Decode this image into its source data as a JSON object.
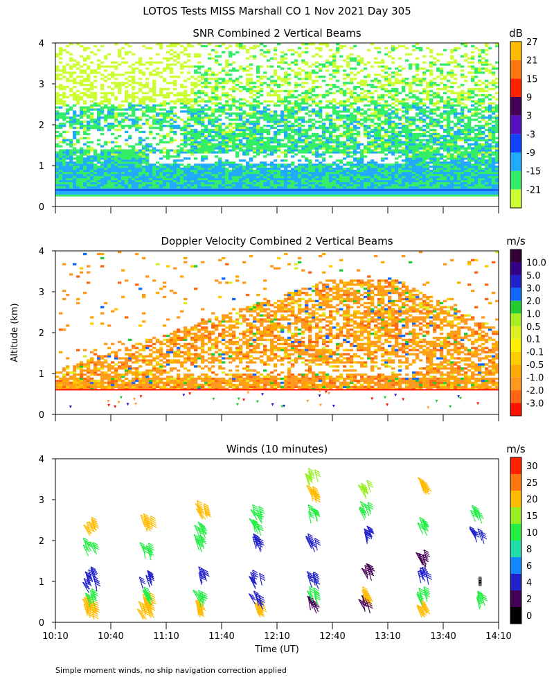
{
  "figure": {
    "title": "LOTOS Tests MISS Marshall CO   1 Nov 2021 Day 305",
    "ylabel": "Altitude (km)",
    "xlabel": "Time (UT)",
    "footnote": "Simple moment winds, no ship navigation correction applied"
  },
  "chart_data": [
    {
      "type": "heatmap",
      "title": "SNR Combined 2 Vertical Beams",
      "units": "dB",
      "xlim": [
        10.1667,
        14.1667
      ],
      "ylim": [
        0,
        4
      ],
      "yticks": [
        0,
        1,
        2,
        3,
        4
      ],
      "colorbar": {
        "labels": [
          "-21",
          "-15",
          "-9",
          "-3",
          "3",
          "9",
          "15",
          "21",
          "27"
        ],
        "colors": [
          "#ccff33",
          "#33ee66",
          "#22aaff",
          "#1144ff",
          "#5511bb",
          "#440055",
          "#ff2200",
          "#ff7711",
          "#ffbb00"
        ]
      },
      "layers": [
        {
          "alt_range_km": [
            0.3,
            0.6
          ],
          "snr_db": "-9 to -15",
          "note": "strong near-surface layer"
        },
        {
          "alt_range_km": [
            0.6,
            2.5
          ],
          "snr_db": "-15 to -3"
        },
        {
          "alt_range_km": [
            2.5,
            4.0
          ],
          "snr_db": "-21 to -15",
          "note": "patchy"
        }
      ]
    },
    {
      "type": "heatmap",
      "title": "Doppler Velocity Combined 2 Vertical Beams",
      "units": "m/s",
      "xlim": [
        10.1667,
        14.1667
      ],
      "ylim": [
        0,
        4
      ],
      "yticks": [
        0,
        1,
        2,
        3,
        4
      ],
      "colorbar": {
        "labels": [
          "-3.0",
          "-2.0",
          "-1.0",
          "-0.5",
          "-0.1",
          "0.1",
          "0.5",
          "1.0",
          "2.0",
          "3.0",
          "5.0",
          "10.0"
        ],
        "colors": [
          "#ff1100",
          "#ff6611",
          "#ff9922",
          "#ffaa00",
          "#ffcc00",
          "#ffee00",
          "#ddee22",
          "#aaee22",
          "#22cc33",
          "#1166ff",
          "#2222cc",
          "#330088",
          "#330033"
        ]
      },
      "dominant_range_m_s": [
        -2.0,
        -0.5
      ],
      "echo_top_km": 3.3
    },
    {
      "type": "scatter",
      "subtype": "wind-barbs",
      "title": "Winds (10 minutes)",
      "units": "m/s",
      "xlim": [
        10.1667,
        14.1667
      ],
      "ylim": [
        0,
        4
      ],
      "yticks": [
        0,
        1,
        2,
        3,
        4
      ],
      "xticks": [
        "10:10",
        "10:40",
        "11:10",
        "11:40",
        "12:10",
        "12:40",
        "13:10",
        "13:40",
        "14:10"
      ],
      "colorbar": {
        "labels": [
          "0",
          "2",
          "4",
          "6",
          "8",
          "10",
          "15",
          "20",
          "25",
          "30"
        ],
        "colors": [
          "#000000",
          "#440055",
          "#2222cc",
          "#1188ff",
          "#22ddaa",
          "#22ee44",
          "#99ee22",
          "#ffbb00",
          "#ff7711",
          "#ff2200"
        ]
      },
      "profile_times_ut": [
        10.5,
        11.0,
        11.5,
        12.0,
        12.5,
        13.0,
        13.5,
        14.0
      ],
      "profiles": [
        {
          "time": 10.5,
          "levels": [
            {
              "alt_km": 0.15,
              "speed_m_s": 24
            },
            {
              "alt_km": 0.3,
              "speed_m_s": 24
            },
            {
              "alt_km": 0.45,
              "speed_m_s": 13
            },
            {
              "alt_km": 0.8,
              "speed_m_s": 4
            },
            {
              "alt_km": 1.0,
              "speed_m_s": 4
            },
            {
              "alt_km": 1.7,
              "speed_m_s": 14
            },
            {
              "alt_km": 2.2,
              "speed_m_s": 21
            }
          ]
        },
        {
          "time": 11.0,
          "levels": [
            {
              "alt_km": 0.15,
              "speed_m_s": 24
            },
            {
              "alt_km": 0.35,
              "speed_m_s": 24
            },
            {
              "alt_km": 0.5,
              "speed_m_s": 13
            },
            {
              "alt_km": 0.9,
              "speed_m_s": 4
            },
            {
              "alt_km": 1.6,
              "speed_m_s": 14
            },
            {
              "alt_km": 2.3,
              "speed_m_s": 24
            }
          ]
        },
        {
          "time": 11.5,
          "levels": [
            {
              "alt_km": 0.2,
              "speed_m_s": 24
            },
            {
              "alt_km": 0.45,
              "speed_m_s": 13
            },
            {
              "alt_km": 1.0,
              "speed_m_s": 4
            },
            {
              "alt_km": 1.8,
              "speed_m_s": 14
            },
            {
              "alt_km": 2.1,
              "speed_m_s": 13
            },
            {
              "alt_km": 2.6,
              "speed_m_s": 24
            }
          ]
        },
        {
          "time": 12.0,
          "levels": [
            {
              "alt_km": 0.2,
              "speed_m_s": 24
            },
            {
              "alt_km": 0.4,
              "speed_m_s": 4
            },
            {
              "alt_km": 0.9,
              "speed_m_s": 4
            },
            {
              "alt_km": 1.8,
              "speed_m_s": 4
            },
            {
              "alt_km": 2.2,
              "speed_m_s": 14
            },
            {
              "alt_km": 2.5,
              "speed_m_s": 14
            }
          ]
        },
        {
          "time": 12.5,
          "levels": [
            {
              "alt_km": 0.3,
              "speed_m_s": 2
            },
            {
              "alt_km": 0.5,
              "speed_m_s": 14
            },
            {
              "alt_km": 0.9,
              "speed_m_s": 4
            },
            {
              "alt_km": 1.8,
              "speed_m_s": 4
            },
            {
              "alt_km": 2.5,
              "speed_m_s": 10
            },
            {
              "alt_km": 3.0,
              "speed_m_s": 24
            },
            {
              "alt_km": 3.4,
              "speed_m_s": 17
            }
          ]
        },
        {
          "time": 13.0,
          "levels": [
            {
              "alt_km": 0.3,
              "speed_m_s": 2
            },
            {
              "alt_km": 0.5,
              "speed_m_s": 20
            },
            {
              "alt_km": 1.1,
              "speed_m_s": 2
            },
            {
              "alt_km": 2.0,
              "speed_m_s": 4
            },
            {
              "alt_km": 2.6,
              "speed_m_s": 14
            },
            {
              "alt_km": 3.1,
              "speed_m_s": 17
            }
          ]
        },
        {
          "time": 13.5,
          "levels": [
            {
              "alt_km": 0.2,
              "speed_m_s": 24
            },
            {
              "alt_km": 0.5,
              "speed_m_s": 13
            },
            {
              "alt_km": 1.0,
              "speed_m_s": 4
            },
            {
              "alt_km": 1.4,
              "speed_m_s": 2
            },
            {
              "alt_km": 2.2,
              "speed_m_s": 14
            },
            {
              "alt_km": 3.2,
              "speed_m_s": 24
            }
          ]
        },
        {
          "time": 14.0,
          "levels": [
            {
              "alt_km": 0.4,
              "speed_m_s": 14
            },
            {
              "alt_km": 1.0,
              "speed_m_s": 0
            },
            {
              "alt_km": 2.0,
              "speed_m_s": 4
            },
            {
              "alt_km": 2.5,
              "speed_m_s": 14
            }
          ]
        }
      ]
    }
  ]
}
